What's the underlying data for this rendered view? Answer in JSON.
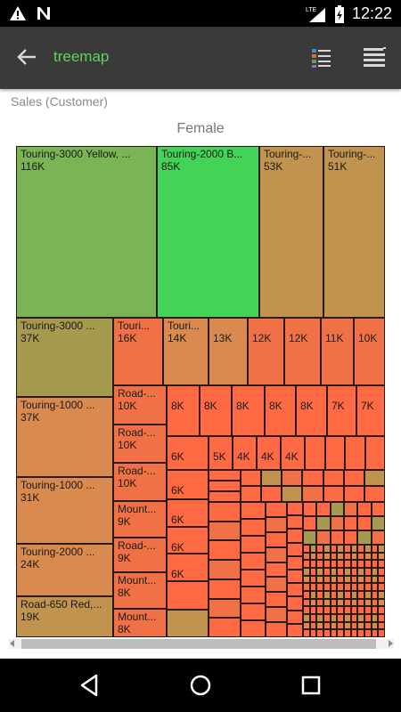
{
  "status_bar": {
    "time": "12:22",
    "icons": [
      "warning-icon",
      "n-notification-icon",
      "lte-signal-icon",
      "battery-icon"
    ]
  },
  "app_bar": {
    "title": "treemap",
    "back_icon": "arrow-back-icon",
    "legend_icon": "legend-list-icon",
    "menu_icon": "menu-lines-icon"
  },
  "chart": {
    "subtitle": "Sales (Customer)",
    "group_title": "Female"
  },
  "colors": {
    "green_bright": "#43d457",
    "green": "#79b455",
    "tan": "#c0944e",
    "olive": "#a59a4e",
    "orange_tan": "#d98a4e",
    "orange": "#f07146",
    "red_orange": "#ff6a45"
  },
  "chart_data": {
    "type": "treemap",
    "group": "Female",
    "labeled_tiles": [
      {
        "label": "Touring-3000 Yellow, ...",
        "value": "116K"
      },
      {
        "label": "Touring-2000 B...",
        "value": "85K"
      },
      {
        "label": "Touring-...",
        "value": "53K"
      },
      {
        "label": "Touring-...",
        "value": "51K"
      },
      {
        "label": "Touring-3000 ...",
        "value": "37K"
      },
      {
        "label": "Touring-1000 ...",
        "value": "37K"
      },
      {
        "label": "Touring-1000 ...",
        "value": "31K"
      },
      {
        "label": "Touring-2000 ...",
        "value": "24K"
      },
      {
        "label": "Road-650 Red,...",
        "value": "19K"
      },
      {
        "label": "Touri...",
        "value": "16K"
      },
      {
        "label": "Touri...",
        "value": "14K"
      },
      {
        "label": "",
        "value": "13K"
      },
      {
        "label": "",
        "value": "12K"
      },
      {
        "label": "",
        "value": "12K"
      },
      {
        "label": "",
        "value": "11K"
      },
      {
        "label": "",
        "value": "10K"
      },
      {
        "label": "Road-...",
        "value": "10K"
      },
      {
        "label": "Road-...",
        "value": "10K"
      },
      {
        "label": "Road-...",
        "value": "10K"
      },
      {
        "label": "Mount...",
        "value": "9K"
      },
      {
        "label": "Road-...",
        "value": "9K"
      },
      {
        "label": "Mount...",
        "value": "8K"
      },
      {
        "label": "Mount...",
        "value": "8K"
      },
      {
        "label": "",
        "value": "8K"
      },
      {
        "label": "",
        "value": "8K"
      },
      {
        "label": "",
        "value": "8K"
      },
      {
        "label": "",
        "value": "8K"
      },
      {
        "label": "",
        "value": "8K"
      },
      {
        "label": "",
        "value": "7K"
      },
      {
        "label": "",
        "value": "7K"
      },
      {
        "label": "",
        "value": "6K"
      },
      {
        "label": "",
        "value": "5K"
      },
      {
        "label": "",
        "value": "4K"
      },
      {
        "label": "",
        "value": "4K"
      },
      {
        "label": "",
        "value": "4K"
      },
      {
        "label": "",
        "value": "6K"
      },
      {
        "label": "",
        "value": "6K"
      },
      {
        "label": "",
        "value": "6K"
      },
      {
        "label": "",
        "value": "6K"
      }
    ]
  },
  "nav_bar": {
    "icons": [
      "nav-back-icon",
      "nav-home-icon",
      "nav-recents-icon"
    ]
  }
}
